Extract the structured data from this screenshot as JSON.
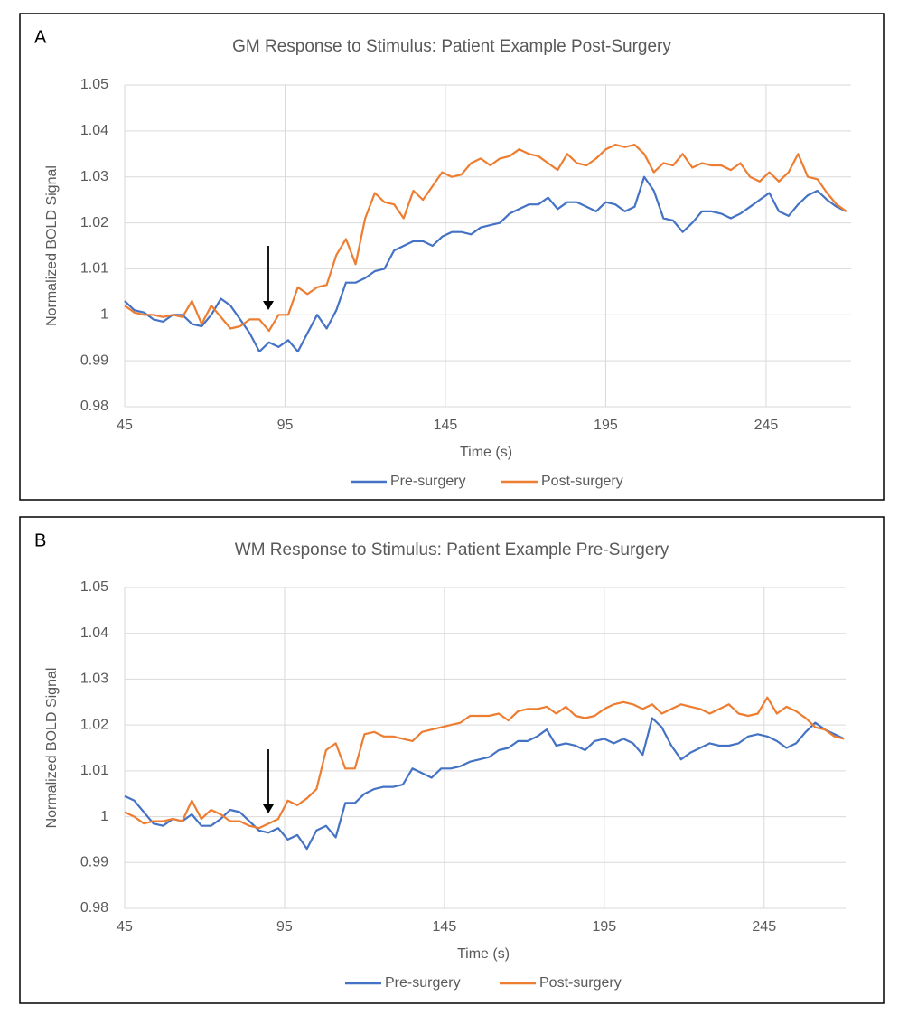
{
  "chart_data": [
    {
      "type": "line",
      "panel_label": "A",
      "title": "GM Response to Stimulus: Patient Example Post-Surgery",
      "x_label": "Time (s)",
      "y_label": "Normalized BOLD Signal",
      "xlim": [
        45,
        271.5
      ],
      "xticks": [
        45,
        95,
        145,
        195,
        245
      ],
      "ylim": [
        0.98,
        1.05
      ],
      "yticks": [
        0.98,
        0.99,
        1,
        1.01,
        1.02,
        1.03,
        1.04,
        1.05
      ],
      "grid": true,
      "legend": "bottom",
      "x": [
        45,
        48,
        51,
        54,
        57,
        60,
        63,
        66,
        69,
        72,
        75,
        78,
        81,
        84,
        87,
        90,
        93,
        96,
        99,
        102,
        105,
        108,
        111,
        114,
        117,
        120,
        123,
        126,
        129,
        132,
        135,
        138,
        141,
        144,
        147,
        150,
        153,
        156,
        159,
        162,
        165,
        168,
        171,
        174,
        177,
        180,
        183,
        186,
        189,
        192,
        195,
        198,
        201,
        204,
        207,
        210,
        213,
        216,
        219,
        222,
        225,
        228,
        231,
        234,
        237,
        240,
        243,
        246,
        249,
        252,
        255,
        258,
        261,
        264,
        267,
        270
      ],
      "series": [
        {
          "name": "Pre-surgery",
          "color": "#4472c4",
          "values": [
            1.003,
            1.001,
            1.0005,
            0.999,
            0.9985,
            1.0,
            1.0,
            0.998,
            0.9975,
            1.0,
            1.0035,
            1.002,
            0.999,
            0.996,
            0.992,
            0.994,
            0.993,
            0.9945,
            0.992,
            0.996,
            1.0,
            0.997,
            1.001,
            1.007,
            1.007,
            1.008,
            1.0095,
            1.01,
            1.014,
            1.015,
            1.016,
            1.016,
            1.015,
            1.017,
            1.018,
            1.018,
            1.0175,
            1.019,
            1.0195,
            1.02,
            1.022,
            1.023,
            1.024,
            1.024,
            1.0255,
            1.023,
            1.0245,
            1.0245,
            1.0235,
            1.0225,
            1.0245,
            1.024,
            1.0225,
            1.0235,
            1.03,
            1.027,
            1.021,
            1.0205,
            1.018,
            1.02,
            1.0225,
            1.0225,
            1.022,
            1.021,
            1.022,
            1.0235,
            1.025,
            1.0265,
            1.0225,
            1.0215,
            1.024,
            1.026,
            1.027,
            1.025,
            1.0235,
            1.0225
          ]
        },
        {
          "name": "Post-surgery",
          "color": "#ed7d31",
          "values": [
            1.002,
            1.0005,
            1.0,
            1.0,
            0.9995,
            1.0,
            0.9995,
            1.003,
            0.998,
            1.002,
            0.9995,
            0.997,
            0.9975,
            0.999,
            0.999,
            0.9965,
            1.0,
            1.0,
            1.006,
            1.0045,
            1.006,
            1.0065,
            1.013,
            1.0165,
            1.011,
            1.021,
            1.0265,
            1.0245,
            1.024,
            1.021,
            1.027,
            1.025,
            1.028,
            1.031,
            1.03,
            1.0305,
            1.033,
            1.034,
            1.0325,
            1.034,
            1.0345,
            1.036,
            1.035,
            1.0345,
            1.033,
            1.0315,
            1.035,
            1.033,
            1.0325,
            1.034,
            1.036,
            1.037,
            1.0365,
            1.037,
            1.035,
            1.031,
            1.033,
            1.0325,
            1.035,
            1.032,
            1.033,
            1.0325,
            1.0325,
            1.0315,
            1.033,
            1.03,
            1.029,
            1.031,
            1.029,
            1.031,
            1.035,
            1.03,
            1.0295,
            1.0265,
            1.024,
            1.0225
          ]
        }
      ]
    },
    {
      "type": "line",
      "panel_label": "B",
      "title": "WM Response to Stimulus: Patient Example Pre-Surgery",
      "x_label": "Time (s)",
      "y_label": "Normalized BOLD Signal",
      "xlim": [
        45,
        270.5
      ],
      "xticks": [
        45,
        95,
        145,
        195,
        245
      ],
      "ylim": [
        0.98,
        1.05
      ],
      "yticks": [
        0.98,
        0.99,
        1,
        1.01,
        1.02,
        1.03,
        1.04,
        1.05
      ],
      "grid": true,
      "legend": "bottom",
      "x": [
        45,
        48,
        51,
        54,
        57,
        60,
        63,
        66,
        69,
        72,
        75,
        78,
        81,
        84,
        87,
        90,
        93,
        96,
        99,
        102,
        105,
        108,
        111,
        114,
        117,
        120,
        123,
        126,
        129,
        132,
        135,
        138,
        141,
        144,
        147,
        150,
        153,
        156,
        159,
        162,
        165,
        168,
        171,
        174,
        177,
        180,
        183,
        186,
        189,
        192,
        195,
        198,
        201,
        204,
        207,
        210,
        213,
        216,
        219,
        222,
        225,
        228,
        231,
        234,
        237,
        240,
        243,
        246,
        249,
        252,
        255,
        258,
        261,
        264,
        267,
        270
      ],
      "series": [
        {
          "name": "Pre-surgery",
          "color": "#4472c4",
          "values": [
            1.0045,
            1.0035,
            1.001,
            0.9985,
            0.998,
            0.9995,
            0.999,
            1.0005,
            0.998,
            0.998,
            0.9995,
            1.0015,
            1.001,
            0.999,
            0.997,
            0.9965,
            0.9975,
            0.995,
            0.996,
            0.993,
            0.997,
            0.998,
            0.9955,
            1.003,
            1.003,
            1.005,
            1.006,
            1.0065,
            1.0065,
            1.007,
            1.0105,
            1.0095,
            1.0085,
            1.0105,
            1.0105,
            1.011,
            1.012,
            1.0125,
            1.013,
            1.0145,
            1.015,
            1.0165,
            1.0165,
            1.0175,
            1.019,
            1.0155,
            1.016,
            1.0155,
            1.0145,
            1.0165,
            1.017,
            1.016,
            1.017,
            1.016,
            1.0135,
            1.0215,
            1.0195,
            1.0155,
            1.0125,
            1.014,
            1.015,
            1.016,
            1.0155,
            1.0155,
            1.016,
            1.0175,
            1.018,
            1.0175,
            1.0165,
            1.015,
            1.016,
            1.0185,
            1.0205,
            1.019,
            1.018,
            1.017
          ]
        },
        {
          "name": "Post-surgery",
          "color": "#ed7d31",
          "values": [
            1.001,
            1.0,
            0.9985,
            0.999,
            0.999,
            0.9995,
            0.999,
            1.0035,
            0.9995,
            1.0015,
            1.0005,
            0.999,
            0.999,
            0.998,
            0.9975,
            0.9985,
            0.9995,
            1.0035,
            1.0025,
            1.004,
            1.006,
            1.0145,
            1.016,
            1.0105,
            1.0105,
            1.018,
            1.0185,
            1.0175,
            1.0175,
            1.017,
            1.0165,
            1.0185,
            1.019,
            1.0195,
            1.02,
            1.0205,
            1.022,
            1.022,
            1.022,
            1.0225,
            1.021,
            1.023,
            1.0235,
            1.0235,
            1.024,
            1.0225,
            1.024,
            1.022,
            1.0215,
            1.022,
            1.0235,
            1.0245,
            1.025,
            1.0245,
            1.0235,
            1.0245,
            1.0225,
            1.0235,
            1.0245,
            1.024,
            1.0235,
            1.0225,
            1.0235,
            1.0245,
            1.0225,
            1.022,
            1.0225,
            1.026,
            1.0225,
            1.024,
            1.023,
            1.0215,
            1.0195,
            1.019,
            1.0175,
            1.017
          ]
        }
      ]
    }
  ]
}
